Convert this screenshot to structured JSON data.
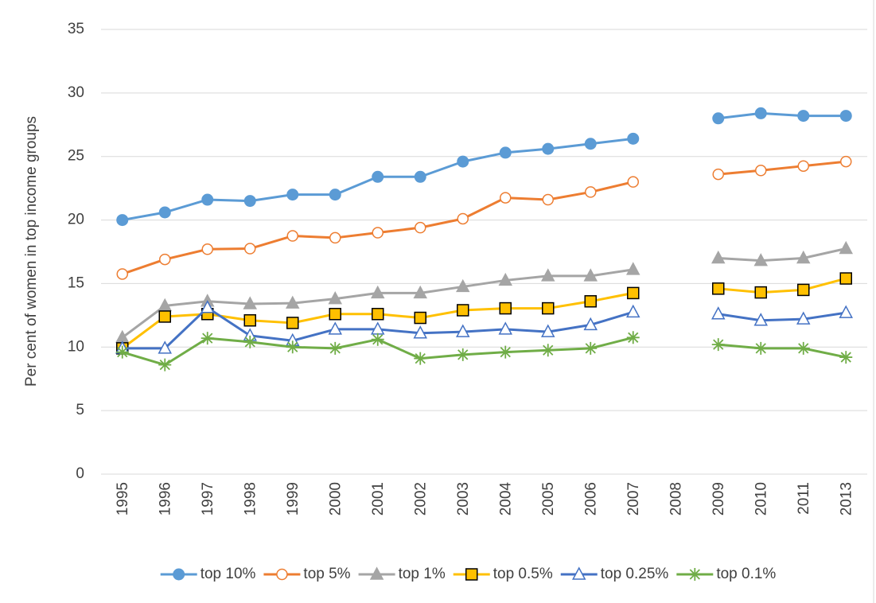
{
  "chart_data": {
    "type": "line",
    "y_label": "Per cent of women in top income groups",
    "categories": [
      "1995",
      "1996",
      "1997",
      "1998",
      "1999",
      "2000",
      "2001",
      "2002",
      "2003",
      "2004",
      "2005",
      "2006",
      "2007",
      "2008",
      "2009",
      "2010",
      "2011",
      "2013"
    ],
    "ylim": [
      0,
      35
    ],
    "yticks": [
      0,
      5,
      10,
      15,
      20,
      25,
      30,
      35
    ],
    "grid": true,
    "legend": "bottom",
    "series": [
      {
        "name": "top 10%",
        "color": "#5b9bd5",
        "marker": "circle",
        "values": [
          20.0,
          20.6,
          21.6,
          21.5,
          22.0,
          22.0,
          23.4,
          23.4,
          24.6,
          25.3,
          25.6,
          26.0,
          26.4,
          null,
          28.0,
          28.4,
          28.2,
          28.2
        ]
      },
      {
        "name": "top 5%",
        "color": "#ed7d31",
        "marker": "circle-open",
        "values": [
          15.75,
          16.9,
          17.7,
          17.75,
          18.75,
          18.6,
          19.0,
          19.4,
          20.1,
          21.75,
          21.6,
          22.2,
          23.0,
          null,
          23.6,
          23.9,
          24.25,
          24.6
        ]
      },
      {
        "name": "top 1%",
        "color": "#a5a5a5",
        "marker": "triangle",
        "values": [
          10.75,
          13.25,
          13.6,
          13.4,
          13.45,
          13.8,
          14.25,
          14.25,
          14.75,
          15.25,
          15.6,
          15.6,
          16.1,
          null,
          17.0,
          16.8,
          17.0,
          17.75
        ]
      },
      {
        "name": "top 0.5%",
        "color": "#ffc000",
        "marker": "square",
        "values": [
          9.9,
          12.4,
          12.6,
          12.1,
          11.9,
          12.6,
          12.6,
          12.3,
          12.9,
          13.05,
          13.05,
          13.6,
          14.25,
          null,
          14.6,
          14.3,
          14.5,
          15.4
        ]
      },
      {
        "name": "top 0.25%",
        "color": "#4472c4",
        "marker": "triangle-open",
        "values": [
          9.9,
          9.9,
          13.1,
          10.9,
          10.5,
          11.4,
          11.4,
          11.1,
          11.2,
          11.4,
          11.2,
          11.75,
          12.75,
          null,
          12.6,
          12.1,
          12.2,
          12.7
        ]
      },
      {
        "name": "top 0.1%",
        "color": "#70ad47",
        "marker": "asterisk",
        "values": [
          9.6,
          8.6,
          10.7,
          10.4,
          10.0,
          9.9,
          10.6,
          9.1,
          9.4,
          9.6,
          9.75,
          9.9,
          10.75,
          null,
          10.2,
          9.9,
          9.9,
          9.2
        ]
      }
    ]
  }
}
